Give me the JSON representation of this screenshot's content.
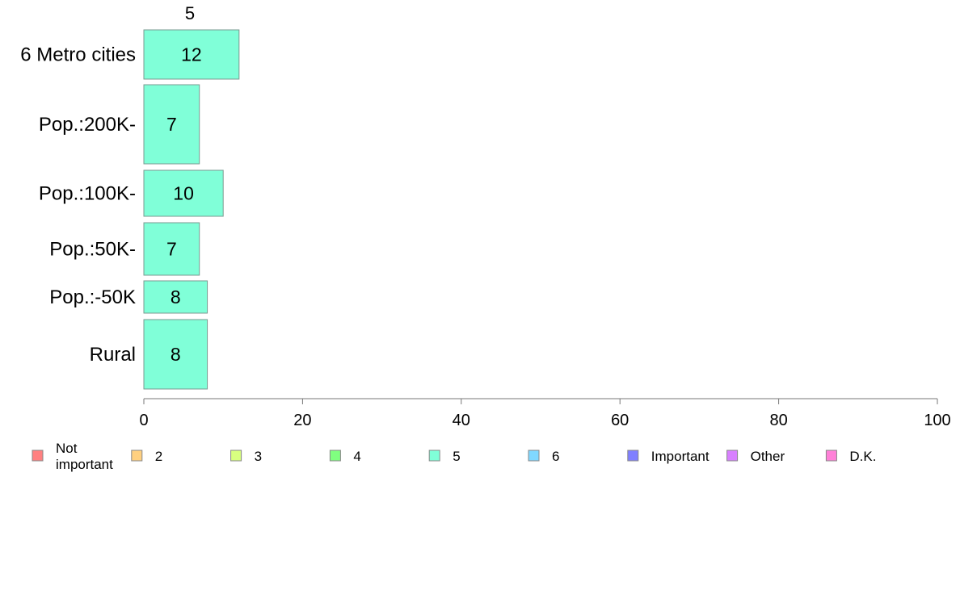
{
  "chart_data": {
    "type": "bar",
    "orientation": "horizontal",
    "stacked": true,
    "title": "5",
    "categories": [
      "6 Metro cities",
      "Pop.:200K-",
      "Pop.:100K-",
      "Pop.:50K-",
      "Pop.:-50K",
      "Rural"
    ],
    "series": [
      {
        "name": "Not\nimportant",
        "color": "#ff8080",
        "values": [
          0,
          0,
          0,
          0,
          0,
          0
        ]
      },
      {
        "name": "2",
        "color": "#ffd080",
        "values": [
          0,
          0,
          0,
          0,
          0,
          0
        ]
      },
      {
        "name": "3",
        "color": "#d8ff80",
        "values": [
          0,
          0,
          0,
          0,
          0,
          0
        ]
      },
      {
        "name": "4",
        "color": "#80ff80",
        "values": [
          0,
          0,
          0,
          0,
          0,
          0
        ]
      },
      {
        "name": "5",
        "color": "#80ffd8",
        "values": [
          12,
          7,
          10,
          7,
          8,
          8
        ]
      },
      {
        "name": "6",
        "color": "#80d8ff",
        "values": [
          0,
          0,
          0,
          0,
          0,
          0
        ]
      },
      {
        "name": "Important",
        "color": "#8080ff",
        "values": [
          0,
          0,
          0,
          0,
          0,
          0
        ]
      },
      {
        "name": "Other",
        "color": "#d880ff",
        "values": [
          0,
          0,
          0,
          0,
          0,
          0
        ]
      },
      {
        "name": "D.K.",
        "color": "#ff80d8",
        "values": [
          0,
          0,
          0,
          0,
          0,
          0
        ]
      }
    ],
    "data_labels": [
      "12",
      "7",
      "10",
      "7",
      "8",
      "8"
    ],
    "xlim": [
      0,
      100
    ],
    "xticks": [
      0,
      20,
      40,
      60,
      80,
      100
    ],
    "xtick_labels": [
      "0",
      "20",
      "40",
      "60",
      "80",
      "100"
    ],
    "xlabel": "",
    "ylabel": "",
    "grid": false,
    "legend_position": "bottom"
  }
}
